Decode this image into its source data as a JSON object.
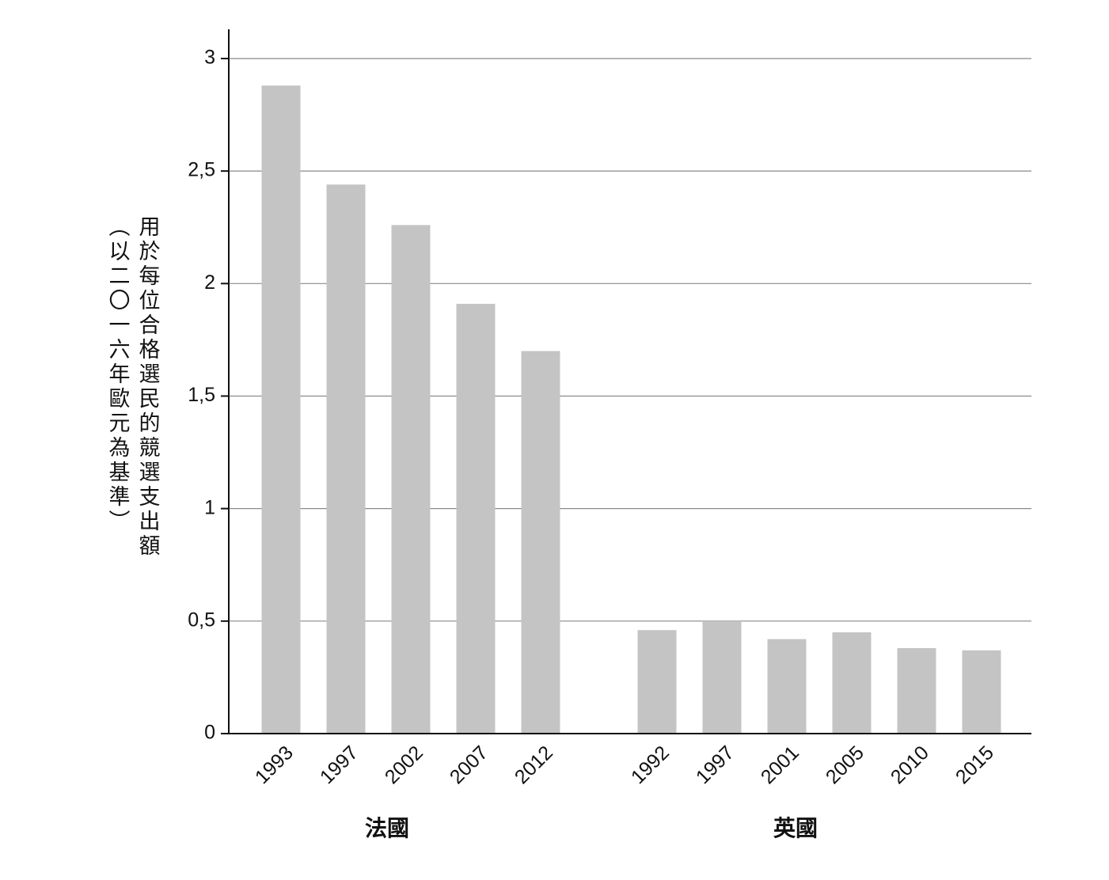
{
  "chart_data": {
    "type": "bar",
    "ylabel": [
      "用於每位合格選民的競選支出額",
      "（以二〇一六年歐元為基準）"
    ],
    "color": "#c4c4c4",
    "groups": [
      {
        "label": "法國",
        "categories": [
          "1993",
          "1997",
          "2002",
          "2007",
          "2012"
        ],
        "values": [
          2.88,
          2.44,
          2.26,
          1.91,
          1.7
        ]
      },
      {
        "label": "英國",
        "categories": [
          "1992",
          "1997",
          "2001",
          "2005",
          "2010",
          "2015"
        ],
        "values": [
          0.46,
          0.5,
          0.42,
          0.45,
          0.38,
          0.37
        ]
      }
    ],
    "ylim": [
      0,
      3.13
    ],
    "yticks": [
      0,
      {
        "value": 0.5,
        "label": "0,5"
      },
      1,
      {
        "value": 1.5,
        "label": "1,5"
      },
      2,
      {
        "value": 2.5,
        "label": "2,5"
      },
      3
    ],
    "grid": true
  }
}
